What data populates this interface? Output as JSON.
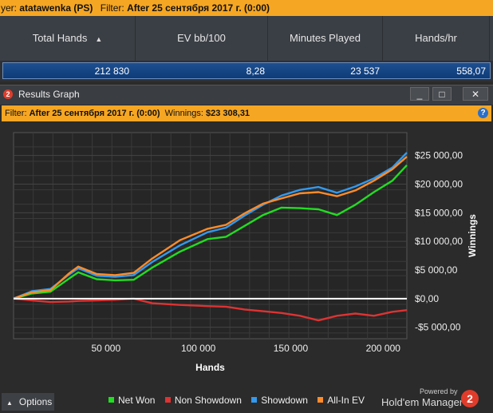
{
  "topbar": {
    "player_prefix": "yer:",
    "player_name": "atatawenka (PS)",
    "filter_label": "Filter:",
    "filter_value": "After 25 сентября 2017 г. (0:00)"
  },
  "stats_table": {
    "headers": [
      "Total Hands",
      "EV bb/100",
      "Minutes Played",
      "Hands/hr"
    ],
    "sort_icon": "triangle-up",
    "row": [
      "212 830",
      "8,28",
      "23 537",
      "558,07"
    ]
  },
  "window": {
    "title": "Results Graph",
    "controls": [
      "_",
      "□",
      "✕"
    ]
  },
  "filterbar": {
    "filter_label": "Filter:",
    "filter_value": "After 25 сентября 2017 г. (0:00)",
    "winnings_label": "Winnings:",
    "winnings_value": "$23 308,31",
    "help_icon": "?"
  },
  "chart_data": {
    "type": "line",
    "xlabel": "Hands",
    "ylabel": "Winnings",
    "xlim": [
      0,
      212830
    ],
    "ylim": [
      -7000,
      29000
    ],
    "x_ticks": [
      50000,
      100000,
      150000,
      200000
    ],
    "x_tick_labels": [
      "50 000",
      "100 000",
      "150 000",
      "200 000"
    ],
    "y_ticks": [
      25000,
      20000,
      15000,
      10000,
      5000,
      0,
      -5000
    ],
    "y_tick_labels": [
      "$25 000,00",
      "$20 000,00",
      "$15 000,00",
      "$10 000,00",
      "$5 000,00",
      "$0,00",
      "-$5 000,00"
    ],
    "grid": true,
    "x": [
      0,
      10000,
      20000,
      30000,
      35000,
      45000,
      55000,
      65000,
      75000,
      90000,
      105000,
      115000,
      125000,
      135000,
      145000,
      155000,
      165000,
      175000,
      185000,
      195000,
      205000,
      212830
    ],
    "series": [
      {
        "name": "Net Won",
        "color": "#22dd22",
        "values": [
          0,
          900,
          1200,
          3500,
          4600,
          3400,
          3200,
          3300,
          5400,
          8200,
          10400,
          10800,
          12700,
          14600,
          15900,
          15800,
          15600,
          14600,
          16400,
          18600,
          20600,
          23300
        ]
      },
      {
        "name": "Non Showdown",
        "color": "#dd3333",
        "values": [
          0,
          -300,
          -600,
          -500,
          -400,
          -300,
          -200,
          0,
          -800,
          -1100,
          -1300,
          -1400,
          -1900,
          -2200,
          -2500,
          -3000,
          -3800,
          -3000,
          -2600,
          -3000,
          -2300,
          -2000
        ]
      },
      {
        "name": "Showdown",
        "color": "#3399ee",
        "values": [
          0,
          1300,
          1700,
          4200,
          5300,
          4000,
          3800,
          4100,
          6400,
          9300,
          11600,
          12400,
          14500,
          16400,
          18000,
          19000,
          19500,
          18500,
          19600,
          21000,
          22900,
          25500
        ]
      },
      {
        "name": "All-In EV",
        "color": "#ff8c2a",
        "values": [
          0,
          1100,
          1500,
          4400,
          5600,
          4300,
          4100,
          4500,
          7000,
          10200,
          12200,
          12900,
          14900,
          16600,
          17500,
          18400,
          18600,
          17900,
          18900,
          20600,
          22600,
          24800
        ]
      }
    ],
    "zero_line_color": "#ffffff",
    "legend_position": "bottom"
  },
  "bottom": {
    "options_label": "Options",
    "options_icon": "caret-up",
    "powered_by": "Powered by",
    "brand": "Hold'em Manager",
    "brand_badge": "2"
  },
  "colors": {
    "accent": "#f5a623",
    "background": "#2b2b2b",
    "selection": "#0e3b78"
  }
}
